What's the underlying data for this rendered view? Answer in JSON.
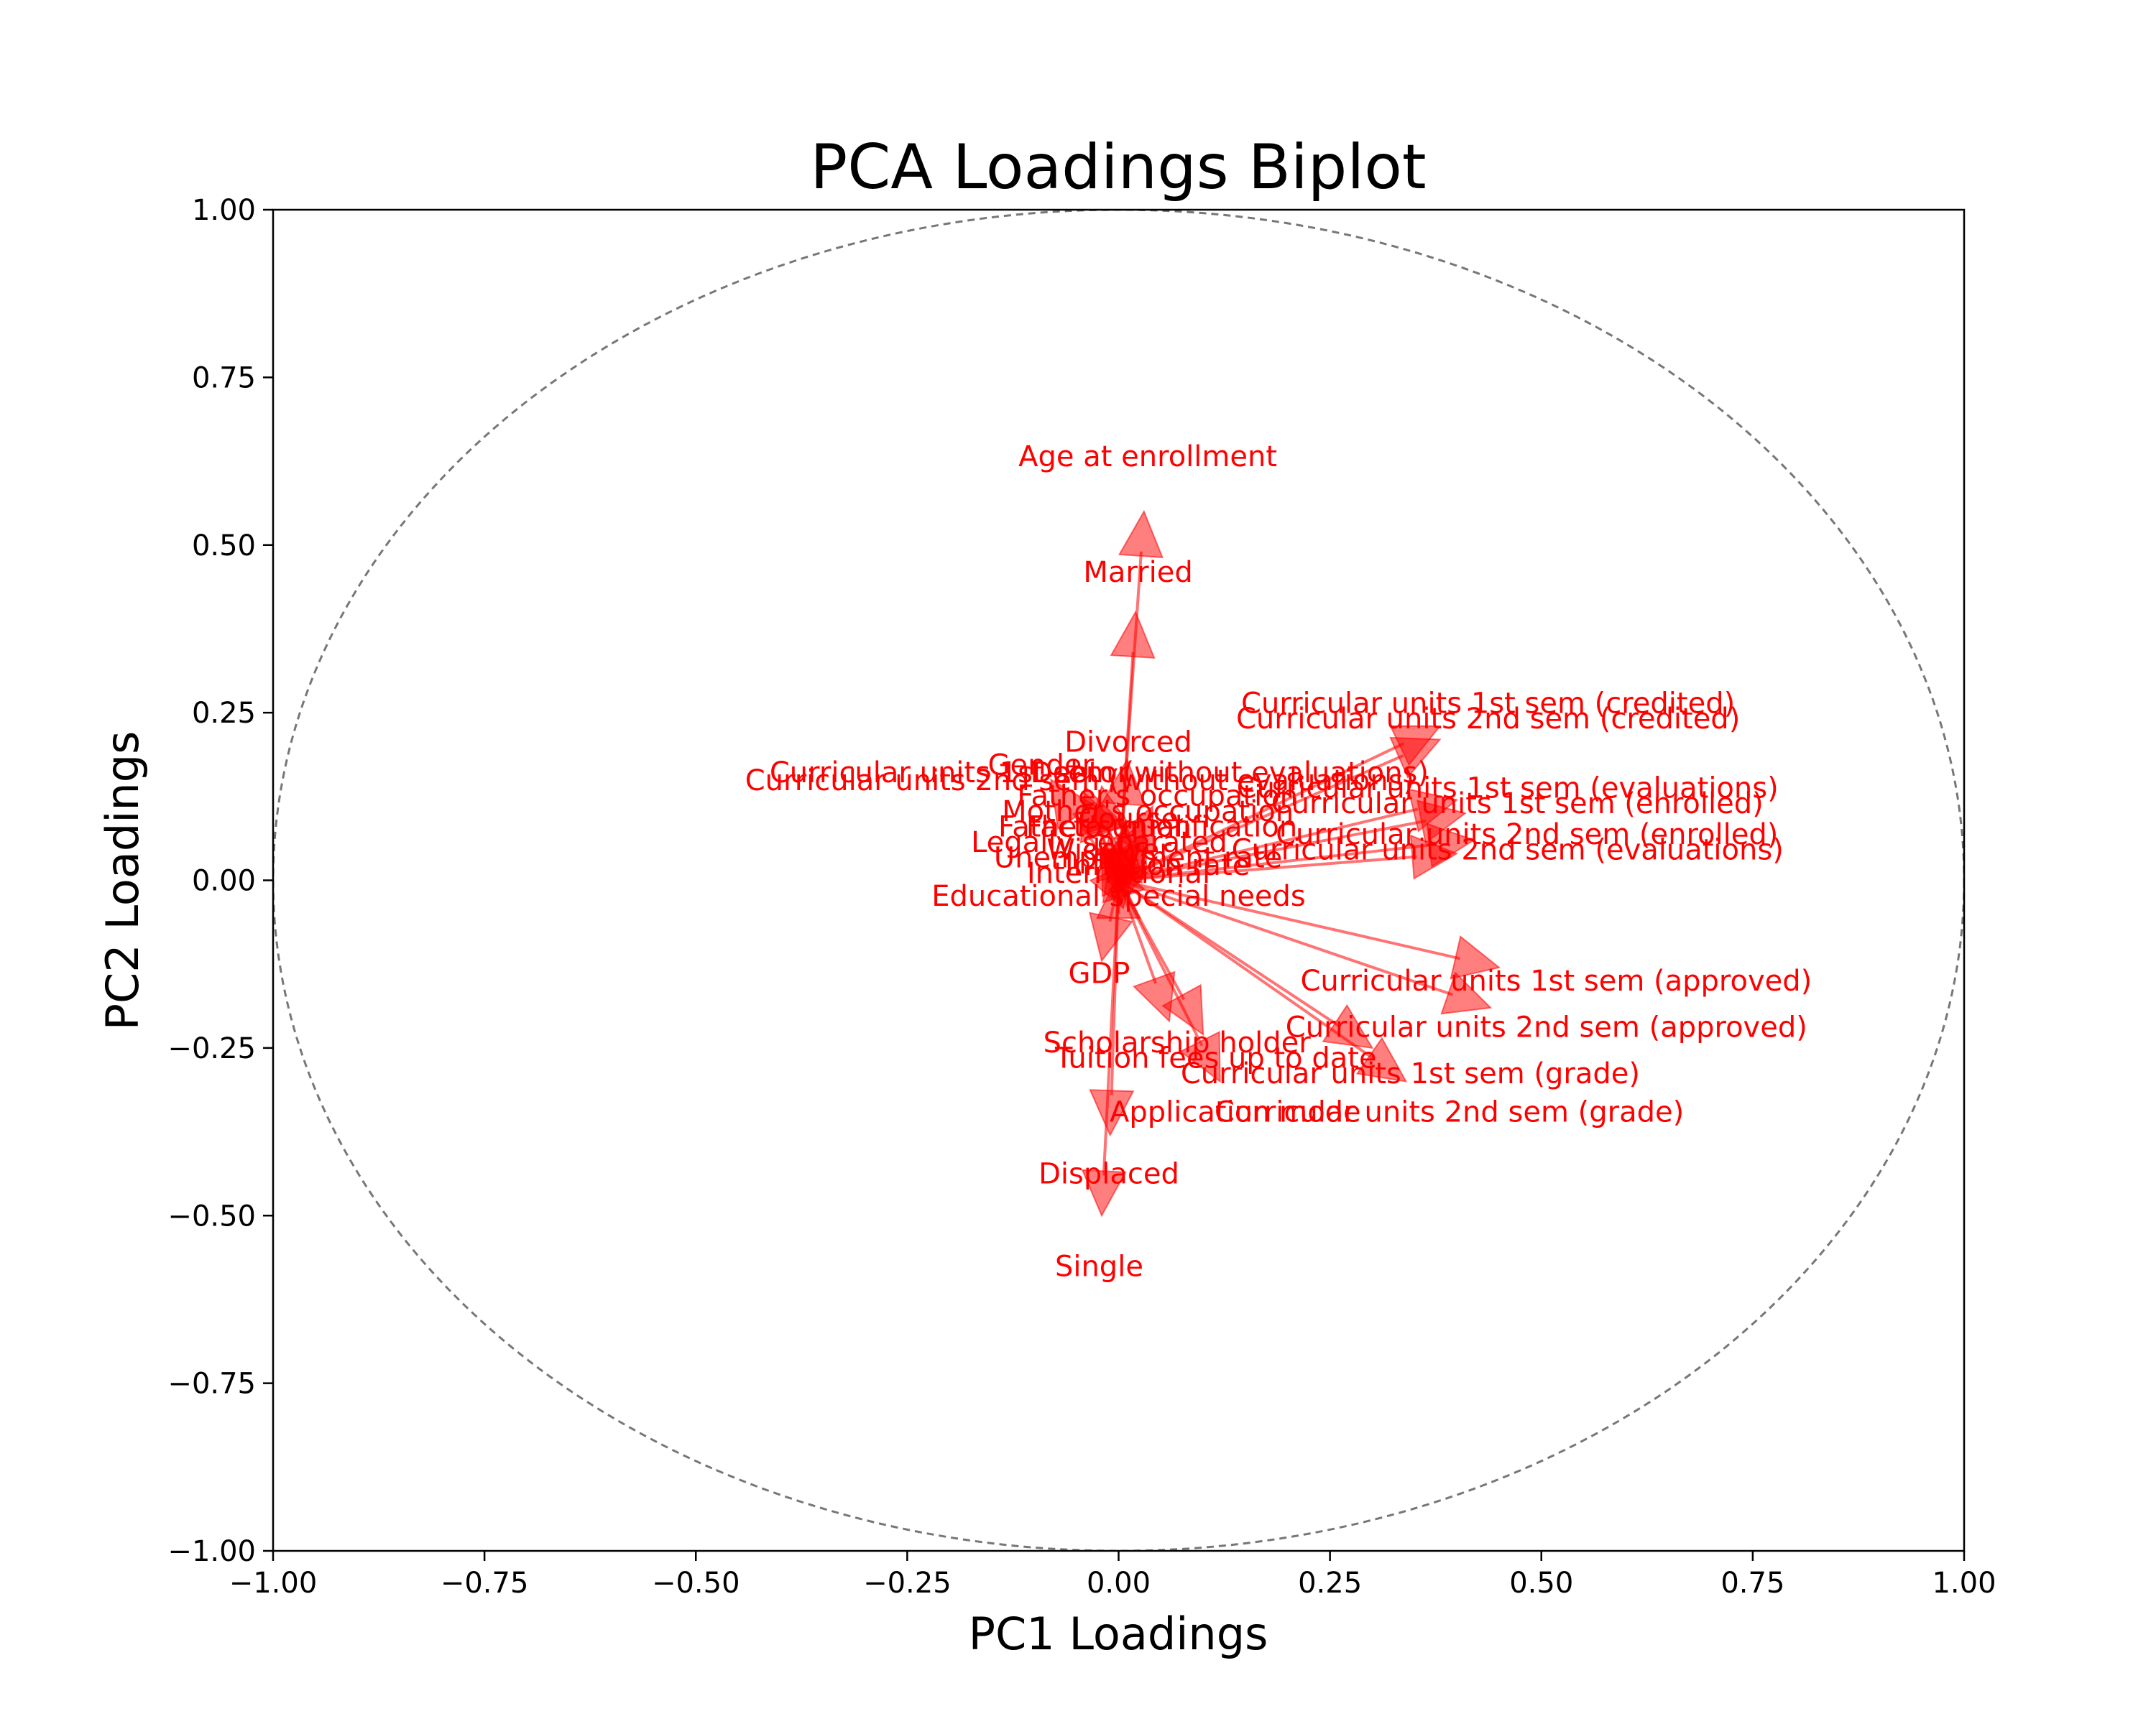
{
  "chart_data": {
    "type": "scatter",
    "title": "PCA Loadings Biplot",
    "xlabel": "PC1 Loadings",
    "ylabel": "PC2 Loadings",
    "xlim": [
      -1.0,
      1.0
    ],
    "ylim": [
      -1.0,
      1.0
    ],
    "xticks": [
      "−1.00",
      "−0.75",
      "−0.50",
      "−0.25",
      "0.00",
      "0.25",
      "0.50",
      "0.75",
      "1.00"
    ],
    "yticks": [
      "−1.00",
      "−0.75",
      "−0.50",
      "−0.25",
      "0.00",
      "0.25",
      "0.50",
      "0.75",
      "1.00"
    ],
    "grid": false,
    "unit_circle": true,
    "arrow_color": "#ff0000",
    "circle_color": "#777777",
    "loadings": [
      {
        "label": "Age at enrollment",
        "x": 0.03,
        "y": 0.55
      },
      {
        "label": "Married",
        "x": 0.02,
        "y": 0.4
      },
      {
        "label": "Divorced",
        "x": 0.01,
        "y": 0.18
      },
      {
        "label": "Gender",
        "x": -0.08,
        "y": 0.15
      },
      {
        "label": "Debtor",
        "x": -0.04,
        "y": 0.14
      },
      {
        "label": "Curricular units 1st sem (credited)",
        "x": 0.38,
        "y": 0.23
      },
      {
        "label": "Curricular units 2nd sem (credited)",
        "x": 0.38,
        "y": 0.21
      },
      {
        "label": "Curricular units 1st sem (without evaluations)",
        "x": -0.02,
        "y": 0.14
      },
      {
        "label": "Curricular units 2nd sem (without evaluations)",
        "x": -0.04,
        "y": 0.13
      },
      {
        "label": "Curricular units 1st sem (evaluations)",
        "x": 0.4,
        "y": 0.12
      },
      {
        "label": "Curricular units 1st sem (enrolled)",
        "x": 0.41,
        "y": 0.1
      },
      {
        "label": "Father's occupation",
        "x": 0.04,
        "y": 0.11
      },
      {
        "label": "Mother's occupation",
        "x": 0.03,
        "y": 0.09
      },
      {
        "label": "Father's qualification",
        "x": 0.03,
        "y": 0.07
      },
      {
        "label": "Course",
        "x": 0.01,
        "y": 0.08
      },
      {
        "label": "Facto union",
        "x": -0.01,
        "y": 0.07
      },
      {
        "label": "Curricular units 2nd sem (enrolled)",
        "x": 0.42,
        "y": 0.06
      },
      {
        "label": "Curricular units 2nd sem (evaluations)",
        "x": 0.4,
        "y": 0.04
      },
      {
        "label": "Legally separated",
        "x": -0.02,
        "y": 0.05
      },
      {
        "label": "Widower",
        "x": -0.01,
        "y": 0.04
      },
      {
        "label": "Unemployment rate",
        "x": 0.02,
        "y": 0.03
      },
      {
        "label": "Inflation rate",
        "x": 0.04,
        "y": 0.02
      },
      {
        "label": "International",
        "x": 0.0,
        "y": 0.01
      },
      {
        "label": "Educational special needs",
        "x": 0.0,
        "y": -0.02
      },
      {
        "label": "GDP",
        "x": -0.02,
        "y": -0.12
      },
      {
        "label": "Curricular units 1st sem (approved)",
        "x": 0.45,
        "y": -0.13
      },
      {
        "label": "Curricular units 2nd sem (approved)",
        "x": 0.44,
        "y": -0.19
      },
      {
        "label": "Scholarship holder",
        "x": 0.06,
        "y": -0.21
      },
      {
        "label": "Tuition fees up to date",
        "x": 0.1,
        "y": -0.23
      },
      {
        "label": "Curricular units 1st sem (grade)",
        "x": 0.3,
        "y": -0.25
      },
      {
        "label": "Curricular units 2nd sem (grade)",
        "x": 0.34,
        "y": -0.3
      },
      {
        "label": "Application mode",
        "x": 0.12,
        "y": -0.3
      },
      {
        "label": "Displaced",
        "x": -0.01,
        "y": -0.38
      },
      {
        "label": "Single",
        "x": -0.02,
        "y": -0.5
      }
    ]
  }
}
